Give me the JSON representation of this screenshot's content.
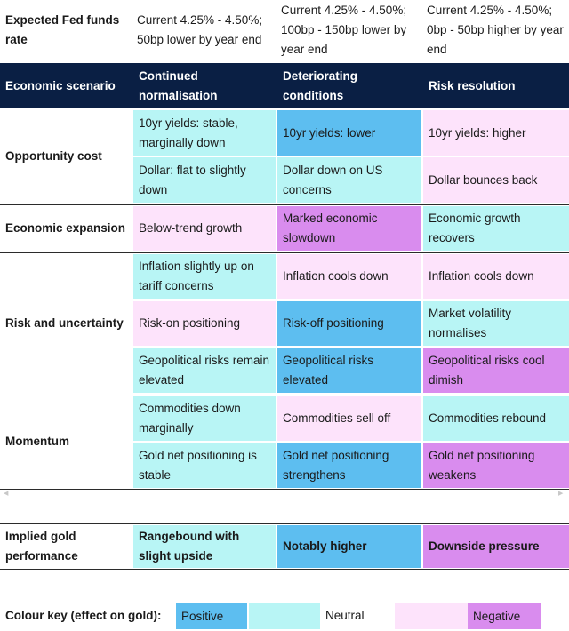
{
  "top_row": {
    "label": "Expected Fed funds rate",
    "cols": [
      "Current 4.25% - 4.50%; 50bp lower by year end",
      "Current 4.25% - 4.50%; 100bp - 150bp lower by year end",
      "Current 4.25% - 4.50%; 0bp - 50bp higher by year end"
    ]
  },
  "header": {
    "label": "Economic scenario",
    "cols": [
      "Continued normalisation",
      "Deteriorating conditions",
      "Risk resolution"
    ]
  },
  "rows": {
    "opportunity_cost": {
      "label": "Opportunity cost",
      "r1": [
        "10yr yields: stable, marginally down",
        "10yr yields: lower",
        "10yr yields: higher"
      ],
      "r2": [
        "Dollar: flat to slightly down",
        "Dollar down on US concerns",
        "Dollar bounces back"
      ]
    },
    "economic_expansion": {
      "label": "Economic expansion",
      "r1": [
        "Below-trend growth",
        "Marked economic slowdown",
        "Economic growth recovers"
      ]
    },
    "risk_uncertainty": {
      "label": "Risk and uncertainty",
      "r1": [
        "Inflation slightly up on tariff concerns",
        "Inflation cools down",
        "Inflation cools down"
      ],
      "r2": [
        "Risk-on positioning",
        "Risk-off positioning",
        "Market volatility normalises"
      ],
      "r3": [
        "Geopolitical risks remain elevated",
        "Geopolitical risks elevated",
        "Geopolitical risks cool dimish"
      ]
    },
    "momentum": {
      "label": "Momentum",
      "r1": [
        "Commodities down marginally",
        "Commodities sell off",
        "Commodities rebound"
      ],
      "r2": [
        "Gold net positioning is stable",
        "Gold net positioning strengthens",
        "Gold net positioning weakens"
      ]
    }
  },
  "implied": {
    "label": "Implied gold performance",
    "cols": [
      "Rangebound with slight upside",
      "Notably higher",
      "Downside pressure"
    ]
  },
  "key": {
    "label": "Colour key (effect on gold):",
    "positive": "Positive",
    "neutral": "Neutral",
    "negative": "Negative"
  },
  "colors": {
    "header": "#0a1f44",
    "positive": "#5dbef0",
    "neutral": "#b8f5f5",
    "light_negative": "#fde3fb",
    "negative": "#d98cee"
  }
}
